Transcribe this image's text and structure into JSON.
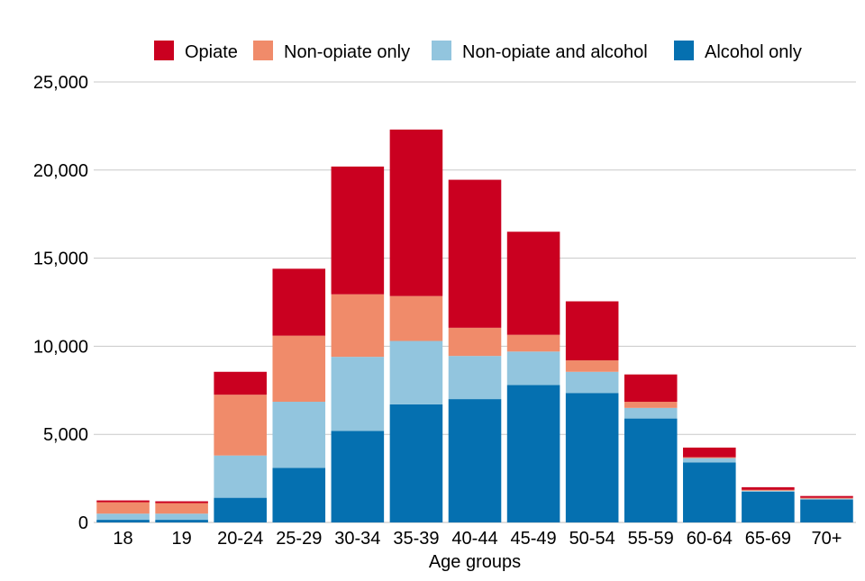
{
  "chart_data": {
    "type": "bar",
    "stacked": true,
    "title": "",
    "xlabel": "Age groups",
    "ylabel": "",
    "ylim": [
      0,
      25000
    ],
    "yticks": [
      0,
      5000,
      10000,
      15000,
      20000,
      25000
    ],
    "ytick_labels": [
      "0",
      "5,000",
      "10,000",
      "15,000",
      "20,000",
      "25,000"
    ],
    "grid": true,
    "legend_position": "top",
    "categories": [
      "18",
      "19",
      "20-24",
      "25-29",
      "30-34",
      "35-39",
      "40-44",
      "45-49",
      "50-54",
      "55-59",
      "60-64",
      "65-69",
      "70+"
    ],
    "series": [
      {
        "name": "Alcohol only",
        "color": "#0570b0",
        "values": [
          150,
          150,
          1400,
          3100,
          5200,
          6700,
          7000,
          7800,
          7350,
          5900,
          3400,
          1750,
          1300
        ]
      },
      {
        "name": "Non-opiate and alcohol",
        "color": "#92c5de",
        "values": [
          350,
          350,
          2400,
          3750,
          4200,
          3600,
          2450,
          1900,
          1200,
          600,
          250,
          50,
          50
        ]
      },
      {
        "name": "Non-opiate only",
        "color": "#f08b6a",
        "values": [
          650,
          600,
          3450,
          3750,
          3550,
          2550,
          1600,
          950,
          650,
          350,
          50,
          50,
          50
        ]
      },
      {
        "name": "Opiate",
        "color": "#ca0020",
        "values": [
          100,
          100,
          1300,
          3800,
          7250,
          9450,
          8400,
          5850,
          3350,
          1550,
          550,
          150,
          100
        ]
      }
    ],
    "legend_order": [
      "Opiate",
      "Non-opiate only",
      "Non-opiate and alcohol",
      "Alcohol only"
    ]
  }
}
